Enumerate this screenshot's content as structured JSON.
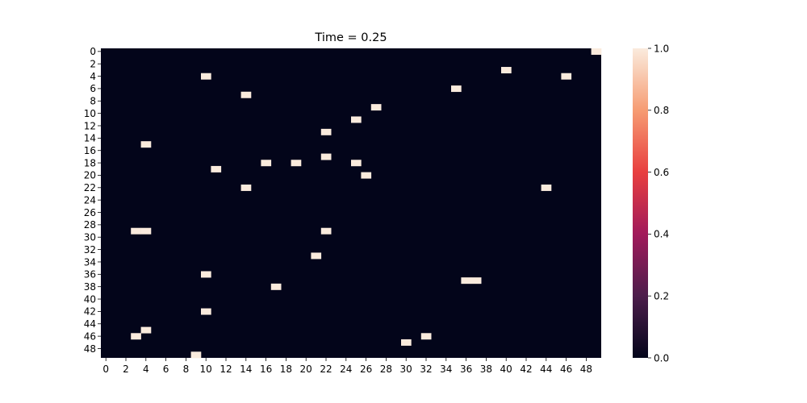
{
  "chart_data": {
    "type": "heatmap",
    "title": "Time = 0.25",
    "xlabel": "",
    "ylabel": "",
    "n_rows": 50,
    "n_cols": 50,
    "x_ticks": [
      "0",
      "2",
      "4",
      "6",
      "8",
      "10",
      "12",
      "14",
      "16",
      "18",
      "20",
      "22",
      "24",
      "26",
      "28",
      "30",
      "32",
      "34",
      "36",
      "38",
      "40",
      "42",
      "44",
      "46",
      "48"
    ],
    "y_ticks": [
      "0",
      "2",
      "4",
      "6",
      "8",
      "10",
      "12",
      "14",
      "16",
      "18",
      "20",
      "22",
      "24",
      "26",
      "28",
      "30",
      "32",
      "34",
      "36",
      "38",
      "40",
      "42",
      "44",
      "46",
      "48"
    ],
    "value_range": [
      0,
      1
    ],
    "background_value": 0,
    "cells": [
      {
        "row": 0,
        "col": 49,
        "value": 1
      },
      {
        "row": 3,
        "col": 40,
        "value": 1
      },
      {
        "row": 4,
        "col": 10,
        "value": 1
      },
      {
        "row": 4,
        "col": 46,
        "value": 1
      },
      {
        "row": 6,
        "col": 35,
        "value": 1
      },
      {
        "row": 7,
        "col": 14,
        "value": 1
      },
      {
        "row": 9,
        "col": 27,
        "value": 1
      },
      {
        "row": 11,
        "col": 25,
        "value": 1
      },
      {
        "row": 13,
        "col": 22,
        "value": 1
      },
      {
        "row": 15,
        "col": 4,
        "value": 1
      },
      {
        "row": 17,
        "col": 22,
        "value": 1
      },
      {
        "row": 18,
        "col": 16,
        "value": 1
      },
      {
        "row": 18,
        "col": 19,
        "value": 1
      },
      {
        "row": 18,
        "col": 25,
        "value": 1
      },
      {
        "row": 19,
        "col": 11,
        "value": 1
      },
      {
        "row": 20,
        "col": 26,
        "value": 1
      },
      {
        "row": 22,
        "col": 14,
        "value": 1
      },
      {
        "row": 22,
        "col": 44,
        "value": 1
      },
      {
        "row": 29,
        "col": 3,
        "value": 1
      },
      {
        "row": 29,
        "col": 4,
        "value": 1
      },
      {
        "row": 29,
        "col": 22,
        "value": 1
      },
      {
        "row": 33,
        "col": 21,
        "value": 1
      },
      {
        "row": 36,
        "col": 10,
        "value": 1
      },
      {
        "row": 37,
        "col": 36,
        "value": 1
      },
      {
        "row": 37,
        "col": 37,
        "value": 1
      },
      {
        "row": 38,
        "col": 17,
        "value": 1
      },
      {
        "row": 42,
        "col": 10,
        "value": 1
      },
      {
        "row": 45,
        "col": 4,
        "value": 1
      },
      {
        "row": 46,
        "col": 3,
        "value": 1
      },
      {
        "row": 46,
        "col": 32,
        "value": 1
      },
      {
        "row": 47,
        "col": 30,
        "value": 1
      },
      {
        "row": 49,
        "col": 9,
        "value": 1
      }
    ],
    "colorbar": {
      "ticks": [
        "0.0",
        "0.2",
        "0.4",
        "0.6",
        "0.8",
        "1.0"
      ],
      "tick_values": [
        0,
        0.2,
        0.4,
        0.6,
        0.8,
        1.0
      ],
      "colors": [
        "#03051a",
        "#4c1d4b",
        "#a11a5b",
        "#e83f3f",
        "#f69c73",
        "#faebdd"
      ]
    },
    "grid": false,
    "legend": "colorbar-right"
  }
}
